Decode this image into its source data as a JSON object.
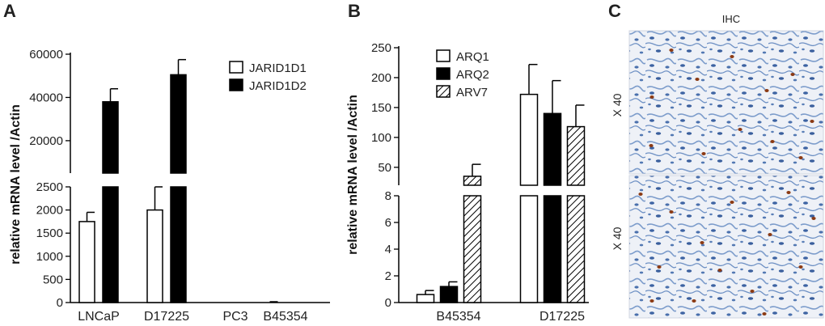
{
  "panels": {
    "a": "A",
    "b": "B",
    "c": "C"
  },
  "ihc": {
    "title": "IHC",
    "top_mag": "X 40",
    "bottom_mag": "X 40"
  },
  "colors": {
    "bar_black": "#000000",
    "bar_white": "#ffffff",
    "stroke": "#000000",
    "stain_blue": "#5f86bd",
    "stain_brown": "#8b3a14"
  },
  "chart_data": [
    {
      "type": "bar",
      "panel": "A",
      "ylabel": "relative mRNA level /Actin",
      "categories": [
        "LNCaP",
        "D17225",
        "PC3",
        "B45354"
      ],
      "y_axis_break": {
        "lower_range": [
          0,
          2500
        ],
        "upper_range": [
          5000,
          60000
        ]
      },
      "yticks_lower": [
        "0",
        "500",
        "1000",
        "1500",
        "2000",
        "2500"
      ],
      "yticks_upper": [
        "20000",
        "40000",
        "60000"
      ],
      "series": [
        {
          "name": "JARID1D1",
          "fill": "white",
          "values": [
            1750,
            2000,
            0,
            0
          ],
          "errors": [
            200,
            500,
            0,
            10
          ]
        },
        {
          "name": "JARID1D2",
          "fill": "black",
          "values": [
            38000,
            50500,
            0,
            0
          ],
          "errors": [
            6000,
            7000,
            0,
            0
          ]
        }
      ]
    },
    {
      "type": "bar",
      "panel": "B",
      "ylabel": "relative mRNA level /Actin",
      "categories": [
        "B45354",
        "D17225"
      ],
      "y_axis_break": {
        "lower_range": [
          0,
          8
        ],
        "upper_range": [
          20,
          250
        ]
      },
      "yticks_lower": [
        "0",
        "2",
        "4",
        "6",
        "8"
      ],
      "yticks_upper": [
        "50",
        "100",
        "150",
        "200",
        "250"
      ],
      "series": [
        {
          "name": "ARQ1",
          "fill": "white",
          "values": [
            0.6,
            172
          ],
          "errors": [
            0.3,
            50
          ]
        },
        {
          "name": "ARQ2",
          "fill": "black",
          "values": [
            1.2,
            140
          ],
          "errors": [
            0.35,
            55
          ]
        },
        {
          "name": "ARV7",
          "fill": "hatched",
          "values": [
            35,
            118
          ],
          "errors": [
            20,
            36
          ]
        }
      ]
    }
  ]
}
